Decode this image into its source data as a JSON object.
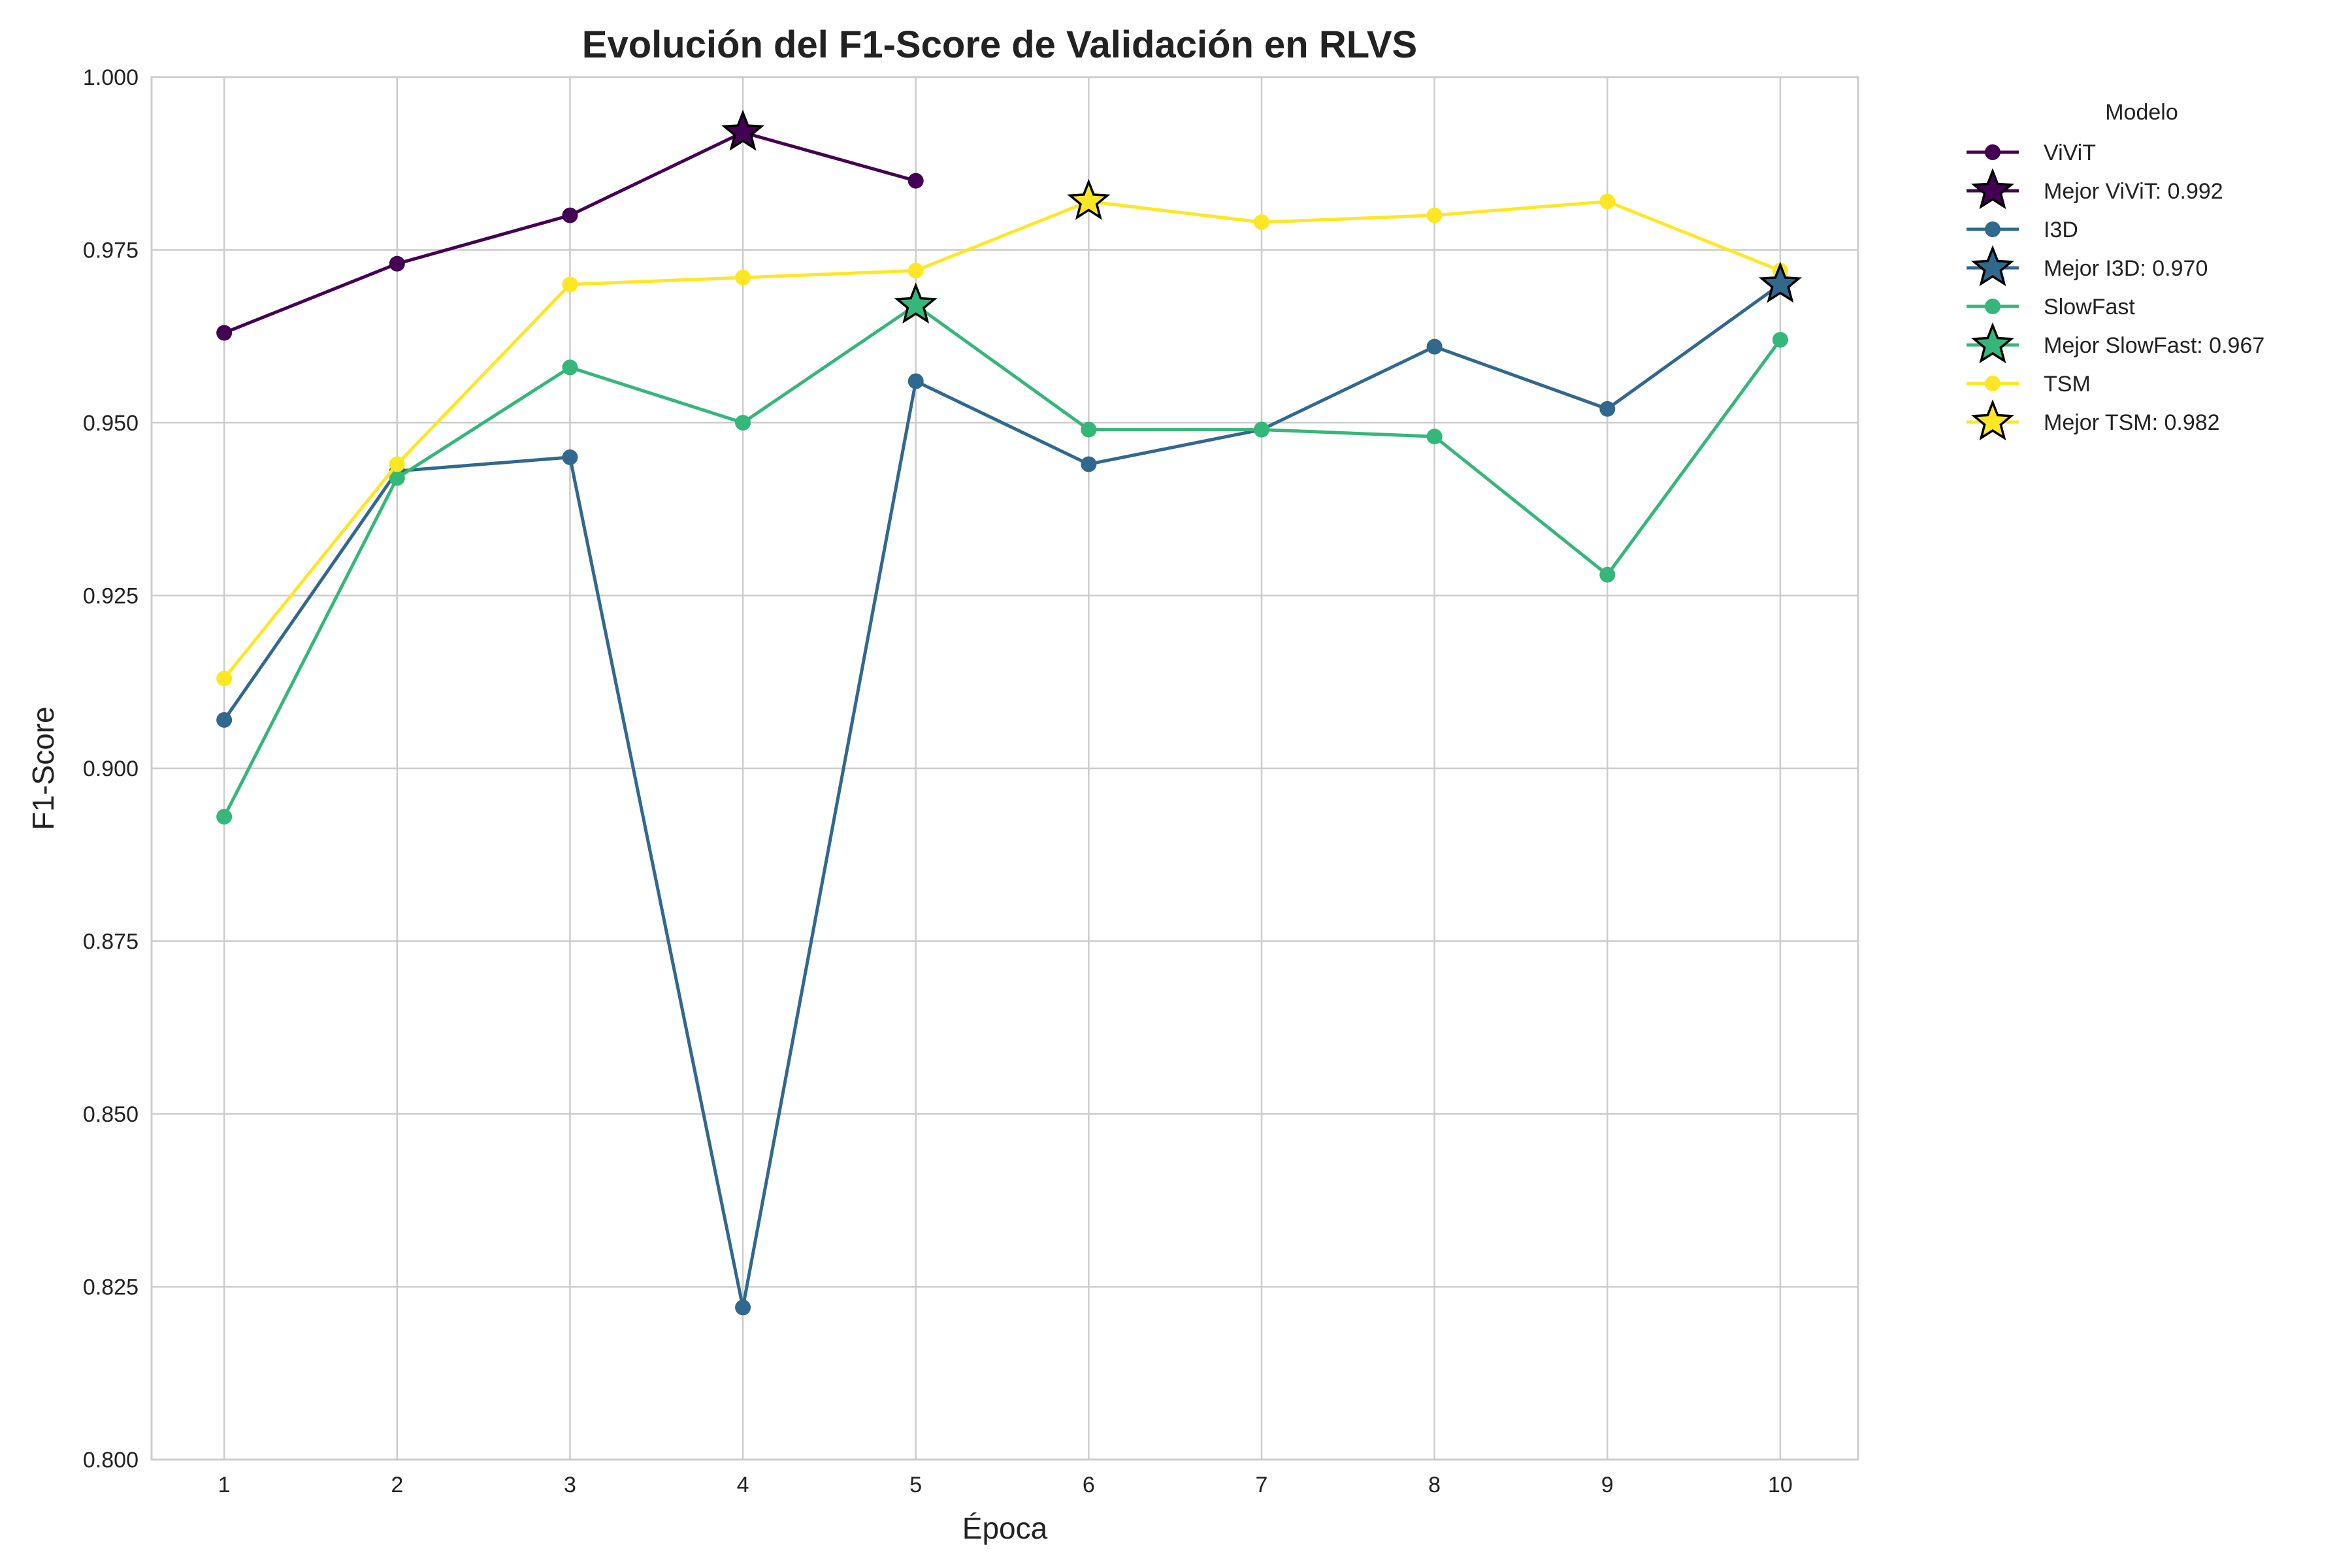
{
  "chart_data": {
    "type": "line",
    "title": "Evolución del F1-Score de Validación en RLVS",
    "xlabel": "Época",
    "ylabel": "F1-Score",
    "ylim": [
      0.8,
      1.0
    ],
    "xlim": [
      0.58,
      10.45
    ],
    "x_ticks": [
      "1",
      "2",
      "3",
      "4",
      "5",
      "6",
      "7",
      "8",
      "9",
      "10"
    ],
    "y_ticks": [
      "0.800",
      "0.825",
      "0.850",
      "0.875",
      "0.900",
      "0.925",
      "0.950",
      "0.975",
      "1.000"
    ],
    "grid": true,
    "legend": {
      "title": "Modelo",
      "placement": "outside-right-top"
    },
    "series": [
      {
        "name": "ViViT",
        "color": "#440154",
        "x": [
          1,
          2,
          3,
          4,
          5
        ],
        "values": [
          0.963,
          0.973,
          0.98,
          0.992,
          0.985
        ],
        "best_label": "Mejor ViViT: 0.992",
        "best": {
          "x": 4,
          "y": 0.992
        }
      },
      {
        "name": "I3D",
        "color": "#31688e",
        "x": [
          1,
          2,
          3,
          4,
          5,
          6,
          7,
          8,
          9,
          10
        ],
        "values": [
          0.907,
          0.943,
          0.945,
          0.822,
          0.956,
          0.944,
          0.949,
          0.961,
          0.952,
          0.97
        ],
        "best_label": "Mejor I3D: 0.970",
        "best": {
          "x": 10,
          "y": 0.97
        }
      },
      {
        "name": "SlowFast",
        "color": "#35b779",
        "x": [
          1,
          2,
          3,
          4,
          5,
          6,
          7,
          8,
          9,
          10
        ],
        "values": [
          0.893,
          0.942,
          0.958,
          0.95,
          0.967,
          0.949,
          0.949,
          0.948,
          0.928,
          0.962
        ],
        "best_label": "Mejor SlowFast: 0.967",
        "best": {
          "x": 5,
          "y": 0.967
        }
      },
      {
        "name": "TSM",
        "color": "#fde725",
        "x": [
          1,
          2,
          3,
          4,
          5,
          6,
          7,
          8,
          9,
          10
        ],
        "values": [
          0.913,
          0.944,
          0.97,
          0.971,
          0.972,
          0.982,
          0.979,
          0.98,
          0.982,
          0.972
        ],
        "best_label": "Mejor TSM: 0.982",
        "best": {
          "x": 6,
          "y": 0.982
        }
      }
    ]
  }
}
